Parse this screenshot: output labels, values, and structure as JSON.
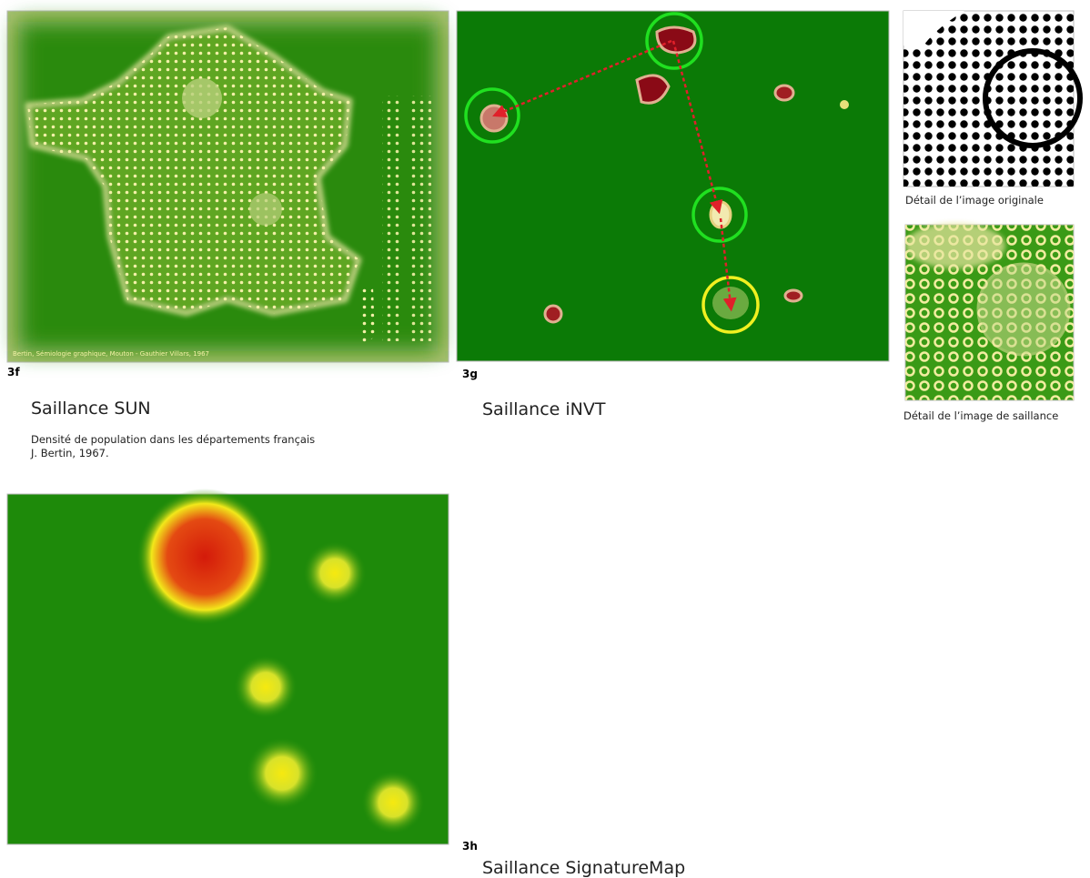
{
  "figures": {
    "f": {
      "label": "3f",
      "title": "Saillance SUN",
      "description": [
        "Densité de population dans les départements français",
        "J. Bertin, 1967."
      ],
      "credit": "Bertin, Sémiologie graphique, Mouton - Gauthier Villars, 1967"
    },
    "g": {
      "label": "3g",
      "title": "Saillance iNVT"
    },
    "h": {
      "label": "3h",
      "title": "Saillance SignatureMap"
    }
  },
  "details": [
    "Détail de l’image originale",
    "Détail de l’image de saillance"
  ]
}
